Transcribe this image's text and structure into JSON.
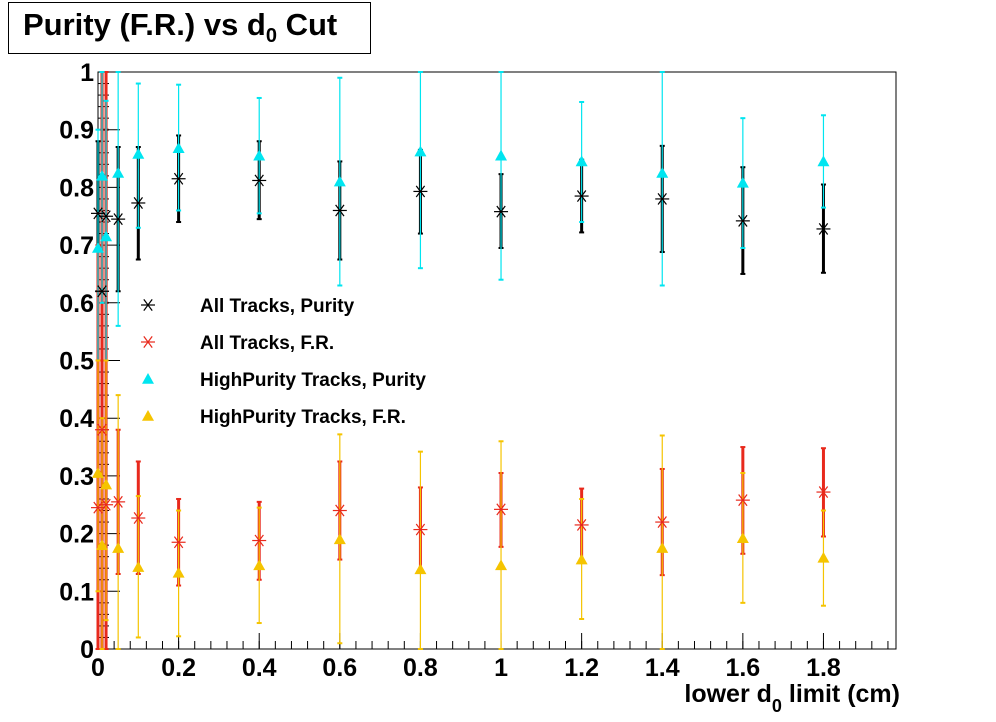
{
  "chart_data": {
    "type": "scatter",
    "title": {
      "main": "Purity (F.R.) vs d",
      "sub": "0",
      "tail": " Cut"
    },
    "xlabel": {
      "pre": "lower d",
      "sub": "0",
      "post": " limit (cm)"
    },
    "ylabel": "",
    "xlim": [
      0,
      1.98
    ],
    "ylim": [
      0,
      1
    ],
    "x_ticks": [
      0,
      0.2,
      0.4,
      0.6,
      0.8,
      1,
      1.2,
      1.4,
      1.6,
      1.8
    ],
    "x_tick_labels": [
      "0",
      "0.2",
      "0.4",
      "0.6",
      "0.8",
      "1",
      "1.2",
      "1.4",
      "1.6",
      "1.8"
    ],
    "y_ticks": [
      0,
      0.1,
      0.2,
      0.3,
      0.4,
      0.5,
      0.6,
      0.7,
      0.8,
      0.9,
      1
    ],
    "y_tick_labels": [
      "0",
      "0.1",
      "0.2",
      "0.3",
      "0.4",
      "0.5",
      "0.6",
      "0.7",
      "0.8",
      "0.9",
      "1"
    ],
    "grid": false,
    "legend_position": "middle-left",
    "series": [
      {
        "name": "All Tracks, Purity",
        "marker": "asterisk",
        "color": "#000000",
        "points": [
          {
            "x": 0.0,
            "y": 0.755,
            "lo": 0.62,
            "hi": 0.88
          },
          {
            "x": 0.01,
            "y": 0.62,
            "lo": 0.0,
            "hi": 1.0
          },
          {
            "x": 0.02,
            "y": 0.75,
            "lo": 0.6,
            "hi": 0.9
          },
          {
            "x": 0.05,
            "y": 0.745,
            "lo": 0.62,
            "hi": 0.87
          },
          {
            "x": 0.1,
            "y": 0.773,
            "lo": 0.675,
            "hi": 0.87
          },
          {
            "x": 0.2,
            "y": 0.815,
            "lo": 0.74,
            "hi": 0.89
          },
          {
            "x": 0.4,
            "y": 0.812,
            "lo": 0.745,
            "hi": 0.88
          },
          {
            "x": 0.6,
            "y": 0.76,
            "lo": 0.675,
            "hi": 0.845
          },
          {
            "x": 0.8,
            "y": 0.793,
            "lo": 0.72,
            "hi": 0.865
          },
          {
            "x": 1.0,
            "y": 0.758,
            "lo": 0.695,
            "hi": 0.823
          },
          {
            "x": 1.2,
            "y": 0.785,
            "lo": 0.722,
            "hi": 0.848
          },
          {
            "x": 1.4,
            "y": 0.78,
            "lo": 0.688,
            "hi": 0.872
          },
          {
            "x": 1.6,
            "y": 0.742,
            "lo": 0.65,
            "hi": 0.835
          },
          {
            "x": 1.8,
            "y": 0.728,
            "lo": 0.652,
            "hi": 0.805
          }
        ]
      },
      {
        "name": "All Tracks, F.R.",
        "marker": "asterisk",
        "color": "#e8291c",
        "points": [
          {
            "x": 0.0,
            "y": 0.245,
            "lo": 0.0,
            "hi": 0.7
          },
          {
            "x": 0.01,
            "y": 0.38,
            "lo": 0.0,
            "hi": 1.0
          },
          {
            "x": 0.02,
            "y": 0.25,
            "lo": 0.0,
            "hi": 1.0
          },
          {
            "x": 0.05,
            "y": 0.255,
            "lo": 0.13,
            "hi": 0.38
          },
          {
            "x": 0.1,
            "y": 0.227,
            "lo": 0.13,
            "hi": 0.325
          },
          {
            "x": 0.2,
            "y": 0.185,
            "lo": 0.11,
            "hi": 0.26
          },
          {
            "x": 0.4,
            "y": 0.188,
            "lo": 0.12,
            "hi": 0.255
          },
          {
            "x": 0.6,
            "y": 0.24,
            "lo": 0.155,
            "hi": 0.325
          },
          {
            "x": 0.8,
            "y": 0.207,
            "lo": 0.135,
            "hi": 0.28
          },
          {
            "x": 1.0,
            "y": 0.242,
            "lo": 0.177,
            "hi": 0.305
          },
          {
            "x": 1.2,
            "y": 0.215,
            "lo": 0.152,
            "hi": 0.278
          },
          {
            "x": 1.4,
            "y": 0.22,
            "lo": 0.128,
            "hi": 0.312
          },
          {
            "x": 1.6,
            "y": 0.258,
            "lo": 0.165,
            "hi": 0.35
          },
          {
            "x": 1.8,
            "y": 0.272,
            "lo": 0.195,
            "hi": 0.348
          }
        ]
      },
      {
        "name": "HighPurity Tracks, Purity",
        "marker": "triangle",
        "color": "#00e5f0",
        "points": [
          {
            "x": 0.0,
            "y": 0.695,
            "lo": 0.5,
            "hi": 0.9
          },
          {
            "x": 0.01,
            "y": 0.82,
            "lo": 0.6,
            "hi": 1.0
          },
          {
            "x": 0.02,
            "y": 0.715,
            "lo": 0.5,
            "hi": 0.95
          },
          {
            "x": 0.05,
            "y": 0.825,
            "lo": 0.56,
            "hi": 1.0
          },
          {
            "x": 0.1,
            "y": 0.858,
            "lo": 0.73,
            "hi": 0.98
          },
          {
            "x": 0.2,
            "y": 0.868,
            "lo": 0.76,
            "hi": 0.978
          },
          {
            "x": 0.4,
            "y": 0.855,
            "lo": 0.755,
            "hi": 0.955
          },
          {
            "x": 0.6,
            "y": 0.81,
            "lo": 0.63,
            "hi": 0.99
          },
          {
            "x": 0.8,
            "y": 0.862,
            "lo": 0.66,
            "hi": 1.0
          },
          {
            "x": 1.0,
            "y": 0.855,
            "lo": 0.64,
            "hi": 1.0
          },
          {
            "x": 1.2,
            "y": 0.845,
            "lo": 0.74,
            "hi": 0.948
          },
          {
            "x": 1.4,
            "y": 0.825,
            "lo": 0.63,
            "hi": 1.0
          },
          {
            "x": 1.6,
            "y": 0.808,
            "lo": 0.695,
            "hi": 0.92
          },
          {
            "x": 1.8,
            "y": 0.845,
            "lo": 0.765,
            "hi": 0.925
          }
        ]
      },
      {
        "name": "HighPurity Tracks, F.R.",
        "marker": "triangle",
        "color": "#f5c400",
        "points": [
          {
            "x": 0.0,
            "y": 0.305,
            "lo": 0.1,
            "hi": 0.5
          },
          {
            "x": 0.01,
            "y": 0.18,
            "lo": 0.0,
            "hi": 0.4
          },
          {
            "x": 0.02,
            "y": 0.285,
            "lo": 0.05,
            "hi": 0.5
          },
          {
            "x": 0.05,
            "y": 0.175,
            "lo": 0.0,
            "hi": 0.44
          },
          {
            "x": 0.1,
            "y": 0.142,
            "lo": 0.02,
            "hi": 0.265
          },
          {
            "x": 0.2,
            "y": 0.132,
            "lo": 0.022,
            "hi": 0.24
          },
          {
            "x": 0.4,
            "y": 0.145,
            "lo": 0.045,
            "hi": 0.245
          },
          {
            "x": 0.6,
            "y": 0.19,
            "lo": 0.01,
            "hi": 0.372
          },
          {
            "x": 0.8,
            "y": 0.138,
            "lo": 0.0,
            "hi": 0.342
          },
          {
            "x": 1.0,
            "y": 0.145,
            "lo": 0.0,
            "hi": 0.36
          },
          {
            "x": 1.2,
            "y": 0.155,
            "lo": 0.052,
            "hi": 0.26
          },
          {
            "x": 1.4,
            "y": 0.175,
            "lo": 0.0,
            "hi": 0.37
          },
          {
            "x": 1.6,
            "y": 0.192,
            "lo": 0.08,
            "hi": 0.305
          },
          {
            "x": 1.8,
            "y": 0.158,
            "lo": 0.075,
            "hi": 0.24
          }
        ]
      }
    ]
  }
}
